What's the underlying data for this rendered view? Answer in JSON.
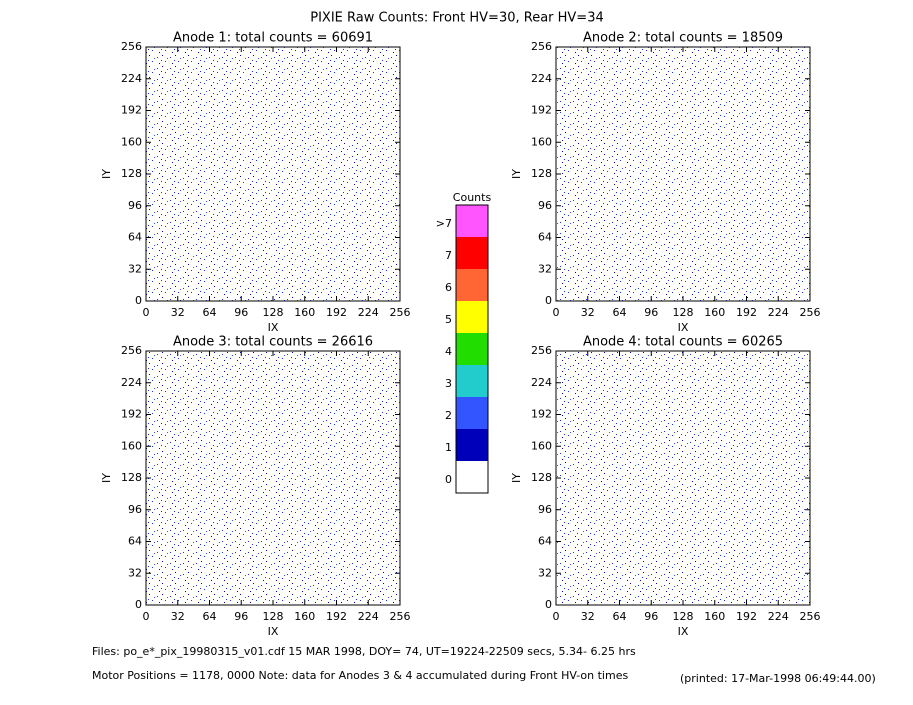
{
  "title": "PIXIE Raw Counts:  Front HV=30, Rear HV=34",
  "chart_data": [
    {
      "type": "heatmap",
      "title": "Anode 1: total counts = 60691",
      "xlabel": "IX",
      "ylabel": "IY",
      "xlim": [
        0,
        256
      ],
      "ylim": [
        0,
        256
      ],
      "xticks": [
        0,
        32,
        64,
        96,
        128,
        160,
        192,
        224,
        256
      ],
      "yticks": [
        0,
        32,
        64,
        96,
        128,
        160,
        192,
        224,
        256
      ]
    },
    {
      "type": "heatmap",
      "title": "Anode 2: total counts = 18509",
      "xlabel": "IX",
      "ylabel": "IY",
      "xlim": [
        0,
        256
      ],
      "ylim": [
        0,
        256
      ],
      "xticks": [
        0,
        32,
        64,
        96,
        128,
        160,
        192,
        224,
        256
      ],
      "yticks": [
        0,
        32,
        64,
        96,
        128,
        160,
        192,
        224,
        256
      ]
    },
    {
      "type": "heatmap",
      "title": "Anode 3: total counts = 26616",
      "xlabel": "IX",
      "ylabel": "IY",
      "xlim": [
        0,
        256
      ],
      "ylim": [
        0,
        256
      ],
      "xticks": [
        0,
        32,
        64,
        96,
        128,
        160,
        192,
        224,
        256
      ],
      "yticks": [
        0,
        32,
        64,
        96,
        128,
        160,
        192,
        224,
        256
      ]
    },
    {
      "type": "heatmap",
      "title": "Anode 4: total counts = 60265",
      "xlabel": "IX",
      "ylabel": "IY",
      "xlim": [
        0,
        256
      ],
      "ylim": [
        0,
        256
      ],
      "xticks": [
        0,
        32,
        64,
        96,
        128,
        160,
        192,
        224,
        256
      ],
      "yticks": [
        0,
        32,
        64,
        96,
        128,
        160,
        192,
        224,
        256
      ]
    }
  ],
  "colorbar": {
    "title": "Counts",
    "labels": [
      ">7",
      "7",
      "6",
      "5",
      "4",
      "3",
      "2",
      "1",
      "0"
    ],
    "colors": [
      "#ff55ff",
      "#ff0000",
      "#ff6633",
      "#ffff00",
      "#22dd00",
      "#22cccc",
      "#3355ff",
      "#0000bb",
      "#ffffff"
    ]
  },
  "footer": {
    "files": "Files: po_e*_pix_19980315_v01.cdf    15 MAR 1998, DOY= 74, UT=19224-22509 secs,  5.34- 6.25 hrs",
    "motor": "Motor Positions = 1178, 0000    Note: data for Anodes 3 & 4 accumulated during Front HV-on times",
    "printed": "(printed: 17-Mar-1998 06:49:44.00)"
  }
}
